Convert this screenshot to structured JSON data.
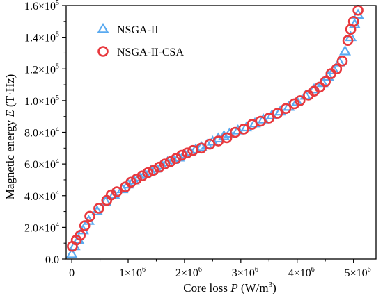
{
  "chart_data": {
    "type": "scatter",
    "xlabel_main": "Core loss ",
    "xlabel_var": "P",
    "xlabel_unit": " (W/m",
    "xlabel_unit_sup": "3",
    "xlabel_unit_end": ")",
    "ylabel_main": "Magnetic energy ",
    "ylabel_var": "E",
    "ylabel_unit": " (T·Hz)",
    "xlim": [
      -100000,
      5400000
    ],
    "ylim": [
      0,
      160000
    ],
    "x_ticks": [
      {
        "value": 0,
        "label": "0",
        "exp": ""
      },
      {
        "value": 1000000,
        "label": "1×10",
        "exp": "6"
      },
      {
        "value": 2000000,
        "label": "2×10",
        "exp": "6"
      },
      {
        "value": 3000000,
        "label": "3×10",
        "exp": "6"
      },
      {
        "value": 4000000,
        "label": "4×10",
        "exp": "6"
      },
      {
        "value": 5000000,
        "label": "5×10",
        "exp": "6"
      }
    ],
    "y_ticks": [
      {
        "value": 0,
        "label": "0.0",
        "exp": ""
      },
      {
        "value": 20000,
        "label": "2.0×10",
        "exp": "4"
      },
      {
        "value": 40000,
        "label": "4.0×10",
        "exp": "4"
      },
      {
        "value": 60000,
        "label": "6.0×10",
        "exp": "4"
      },
      {
        "value": 80000,
        "label": "8.0×10",
        "exp": "4"
      },
      {
        "value": 100000,
        "label": "1.0×10",
        "exp": "5"
      },
      {
        "value": 120000,
        "label": "1.2×10",
        "exp": "5"
      },
      {
        "value": 140000,
        "label": "1.4×10",
        "exp": "5"
      },
      {
        "value": 160000,
        "label": "1.6×10",
        "exp": "5"
      }
    ],
    "legend_position": "top-left",
    "series": [
      {
        "name": "NSGA-II",
        "marker": "triangle",
        "color": "#5aaaf0",
        "points": [
          [
            0,
            3000
          ],
          [
            50000,
            8000
          ],
          [
            120000,
            12000
          ],
          [
            200000,
            18000
          ],
          [
            300000,
            24000
          ],
          [
            450000,
            30000
          ],
          [
            600000,
            36000
          ],
          [
            750000,
            40500
          ],
          [
            900000,
            44000
          ],
          [
            1000000,
            47000
          ],
          [
            1100000,
            49500
          ],
          [
            1200000,
            51500
          ],
          [
            1300000,
            53500
          ],
          [
            1400000,
            55500
          ],
          [
            1500000,
            57000
          ],
          [
            1600000,
            59000
          ],
          [
            1700000,
            61000
          ],
          [
            1800000,
            62500
          ],
          [
            1900000,
            64000
          ],
          [
            2000000,
            66000
          ],
          [
            2100000,
            67500
          ],
          [
            2200000,
            69000
          ],
          [
            2300000,
            70500
          ],
          [
            2400000,
            72000
          ],
          [
            2500000,
            74000
          ],
          [
            2600000,
            76000
          ],
          [
            2700000,
            77500
          ],
          [
            2800000,
            79000
          ],
          [
            2950000,
            81000
          ],
          [
            3100000,
            83000
          ],
          [
            3250000,
            85500
          ],
          [
            3400000,
            88000
          ],
          [
            3550000,
            90500
          ],
          [
            3700000,
            93000
          ],
          [
            3850000,
            96000
          ],
          [
            4000000,
            99000
          ],
          [
            4150000,
            103000
          ],
          [
            4300000,
            107000
          ],
          [
            4450000,
            111000
          ],
          [
            4550000,
            115000
          ],
          [
            4650000,
            119000
          ],
          [
            4750000,
            124000
          ],
          [
            4850000,
            131000
          ],
          [
            4950000,
            140000
          ],
          [
            5020000,
            148000
          ],
          [
            5080000,
            154000
          ]
        ]
      },
      {
        "name": "NSGA-II-CSA",
        "marker": "circle",
        "color": "#e8383d",
        "points": [
          [
            10000,
            8000
          ],
          [
            80000,
            12000
          ],
          [
            150000,
            15000
          ],
          [
            230000,
            21000
          ],
          [
            320000,
            27000
          ],
          [
            480000,
            32000
          ],
          [
            620000,
            37000
          ],
          [
            700000,
            40500
          ],
          [
            800000,
            42500
          ],
          [
            950000,
            45500
          ],
          [
            1050000,
            48500
          ],
          [
            1150000,
            50500
          ],
          [
            1250000,
            52500
          ],
          [
            1350000,
            54500
          ],
          [
            1450000,
            56000
          ],
          [
            1550000,
            58000
          ],
          [
            1650000,
            60000
          ],
          [
            1750000,
            61500
          ],
          [
            1850000,
            63500
          ],
          [
            1950000,
            65500
          ],
          [
            2050000,
            67000
          ],
          [
            2150000,
            68500
          ],
          [
            2300000,
            70000
          ],
          [
            2450000,
            72500
          ],
          [
            2600000,
            74500
          ],
          [
            2750000,
            76500
          ],
          [
            2900000,
            80000
          ],
          [
            3050000,
            82000
          ],
          [
            3200000,
            85000
          ],
          [
            3350000,
            87000
          ],
          [
            3500000,
            89000
          ],
          [
            3650000,
            92000
          ],
          [
            3800000,
            95000
          ],
          [
            3950000,
            98000
          ],
          [
            4050000,
            100000
          ],
          [
            4200000,
            103500
          ],
          [
            4300000,
            106000
          ],
          [
            4400000,
            108500
          ],
          [
            4500000,
            112000
          ],
          [
            4600000,
            117000
          ],
          [
            4700000,
            120000
          ],
          [
            4800000,
            125000
          ],
          [
            4900000,
            138000
          ],
          [
            4950000,
            145000
          ],
          [
            5000000,
            150000
          ],
          [
            5080000,
            157000
          ]
        ]
      }
    ]
  }
}
